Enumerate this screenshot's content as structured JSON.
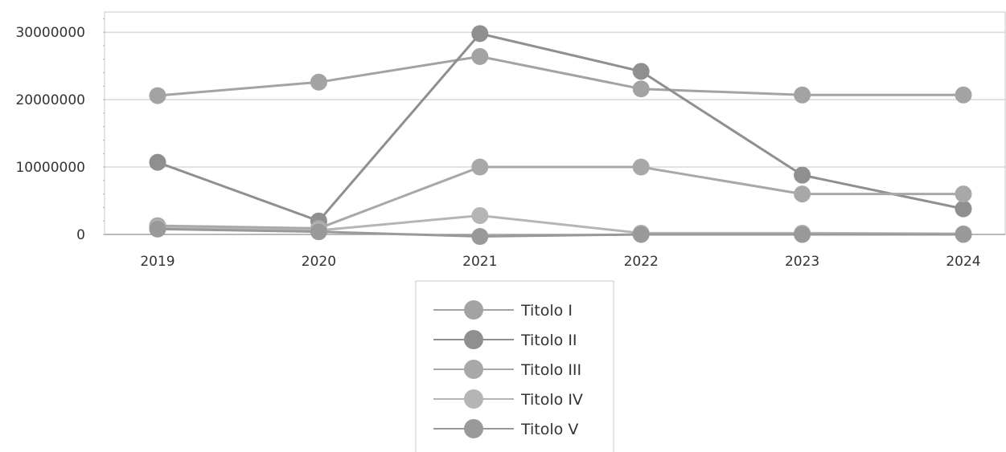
{
  "chart_data": {
    "type": "line",
    "title": "",
    "xlabel": "",
    "ylabel": "",
    "categories": [
      "2019",
      "2020",
      "2021",
      "2022",
      "2023",
      "2024"
    ],
    "ylim": [
      0,
      33000000
    ],
    "yticks": [
      0,
      10000000,
      20000000,
      30000000
    ],
    "ytick_labels": [
      "0",
      "10000000",
      "20000000",
      "30000000"
    ],
    "grid": true,
    "legend_position": "bottom-center",
    "series": [
      {
        "name": "Titolo I",
        "color": "#a3a3a3",
        "values": [
          20600000,
          22600000,
          26400000,
          21600000,
          20700000,
          20700000
        ]
      },
      {
        "name": "Titolo II",
        "color": "#8f8f8f",
        "values": [
          10700000,
          2000000,
          29800000,
          24200000,
          8800000,
          3800000
        ]
      },
      {
        "name": "Titolo III",
        "color": "#a8a8a8",
        "values": [
          1300000,
          900000,
          10000000,
          10000000,
          6000000,
          6000000
        ]
      },
      {
        "name": "Titolo IV",
        "color": "#b5b5b5",
        "values": [
          1000000,
          600000,
          2800000,
          200000,
          200000,
          100000
        ]
      },
      {
        "name": "Titolo V",
        "color": "#999999",
        "values": [
          800000,
          400000,
          -300000,
          0,
          0,
          0
        ]
      }
    ]
  }
}
